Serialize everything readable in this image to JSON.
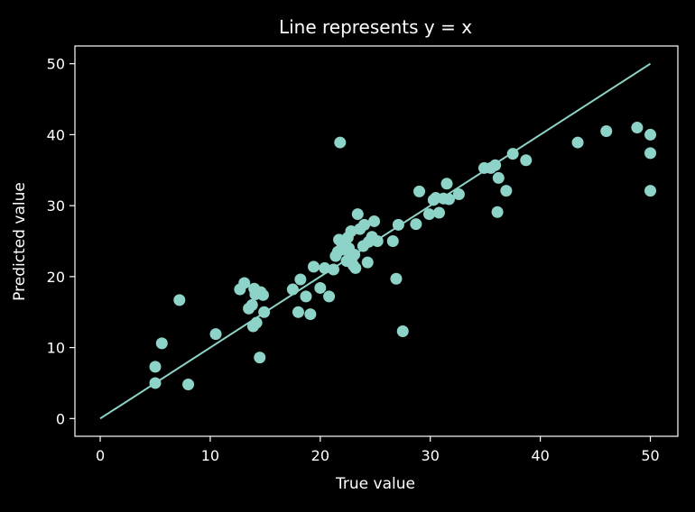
{
  "chart_data": {
    "type": "scatter",
    "title": "Line represents y = x",
    "xlabel": "True value",
    "ylabel": "Predicted value",
    "xlim": [
      -2.3,
      52.5
    ],
    "ylim": [
      -2.5,
      52.5
    ],
    "xticks": [
      0,
      10,
      20,
      30,
      40,
      50
    ],
    "yticks": [
      0,
      10,
      20,
      30,
      40,
      50
    ],
    "grid": false,
    "line": {
      "label": "y = x",
      "from": [
        0,
        0
      ],
      "to": [
        50,
        50
      ],
      "color": "#8dd3c7"
    },
    "marker_color": "#8dd3c7",
    "series": [
      {
        "points": [
          [
            5.0,
            7.3
          ],
          [
            5.0,
            5.0
          ],
          [
            5.6,
            10.6
          ],
          [
            7.2,
            16.7
          ],
          [
            8.0,
            4.8
          ],
          [
            10.5,
            11.9
          ],
          [
            12.7,
            18.2
          ],
          [
            13.1,
            19.1
          ],
          [
            13.5,
            15.5
          ],
          [
            13.8,
            16.0
          ],
          [
            14.0,
            18.3
          ],
          [
            14.1,
            17.5
          ],
          [
            13.9,
            13.0
          ],
          [
            14.2,
            13.5
          ],
          [
            14.5,
            8.6
          ],
          [
            14.6,
            17.8
          ],
          [
            14.8,
            17.4
          ],
          [
            14.9,
            15.0
          ],
          [
            17.5,
            18.2
          ],
          [
            18.0,
            15.0
          ],
          [
            18.2,
            19.6
          ],
          [
            18.7,
            17.2
          ],
          [
            19.1,
            14.7
          ],
          [
            19.4,
            21.4
          ],
          [
            20.0,
            18.4
          ],
          [
            20.4,
            21.2
          ],
          [
            20.8,
            17.2
          ],
          [
            21.2,
            21.0
          ],
          [
            21.4,
            22.9
          ],
          [
            21.6,
            23.5
          ],
          [
            21.7,
            25.2
          ],
          [
            21.8,
            38.9
          ],
          [
            22.0,
            24.5
          ],
          [
            22.2,
            23.8
          ],
          [
            22.4,
            22.2
          ],
          [
            22.5,
            25.5
          ],
          [
            22.6,
            24.0
          ],
          [
            22.7,
            22.5
          ],
          [
            22.8,
            26.4
          ],
          [
            22.9,
            22.7
          ],
          [
            23.0,
            21.6
          ],
          [
            23.1,
            23.1
          ],
          [
            23.2,
            21.2
          ],
          [
            23.4,
            28.8
          ],
          [
            23.6,
            26.7
          ],
          [
            23.9,
            24.3
          ],
          [
            24.0,
            27.3
          ],
          [
            24.3,
            22.0
          ],
          [
            24.4,
            24.9
          ],
          [
            24.7,
            25.6
          ],
          [
            24.9,
            27.8
          ],
          [
            25.2,
            25.0
          ],
          [
            26.6,
            25.0
          ],
          [
            26.9,
            19.7
          ],
          [
            27.1,
            27.3
          ],
          [
            27.5,
            12.3
          ],
          [
            28.7,
            27.4
          ],
          [
            29.0,
            32.0
          ],
          [
            29.9,
            28.8
          ],
          [
            30.3,
            30.8
          ],
          [
            30.5,
            31.1
          ],
          [
            30.8,
            29.0
          ],
          [
            31.2,
            31.0
          ],
          [
            31.5,
            33.1
          ],
          [
            31.7,
            30.9
          ],
          [
            32.6,
            31.6
          ],
          [
            34.9,
            35.3
          ],
          [
            35.5,
            35.3
          ],
          [
            35.9,
            35.7
          ],
          [
            36.1,
            29.1
          ],
          [
            36.2,
            33.9
          ],
          [
            36.9,
            32.1
          ],
          [
            37.5,
            37.3
          ],
          [
            38.7,
            36.4
          ],
          [
            43.4,
            38.9
          ],
          [
            46.0,
            40.5
          ],
          [
            48.8,
            41.0
          ],
          [
            50.0,
            40.0
          ],
          [
            50.0,
            37.4
          ],
          [
            50.0,
            32.1
          ]
        ]
      }
    ]
  }
}
